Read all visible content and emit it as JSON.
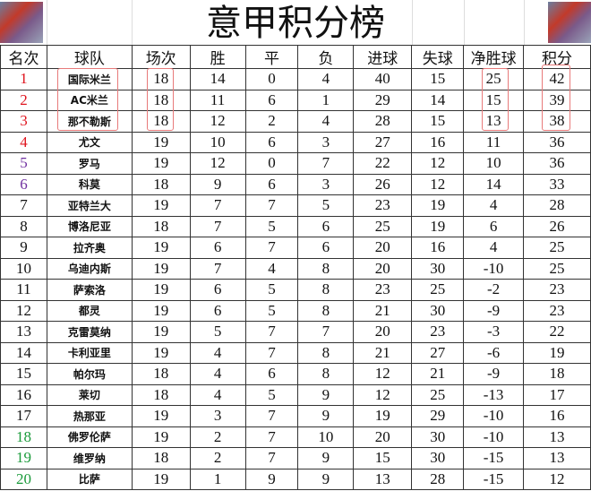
{
  "title": "意甲积分榜",
  "colors": {
    "top": "#e0141e",
    "europa": "#7030a0",
    "relegation": "#1a9a3a",
    "highlight": "#e87a7a"
  },
  "headers": [
    "名次",
    "球队",
    "场次",
    "胜",
    "平",
    "负",
    "进球",
    "失球",
    "净胜球",
    "积分"
  ],
  "rows": [
    [
      "1",
      "国际米兰",
      "18",
      "14",
      "0",
      "4",
      "40",
      "15",
      "25",
      "42"
    ],
    [
      "2",
      "AC米兰",
      "18",
      "11",
      "6",
      "1",
      "29",
      "14",
      "15",
      "39"
    ],
    [
      "3",
      "那不勒斯",
      "18",
      "12",
      "2",
      "4",
      "28",
      "15",
      "13",
      "38"
    ],
    [
      "4",
      "尤文",
      "19",
      "10",
      "6",
      "3",
      "27",
      "16",
      "11",
      "36"
    ],
    [
      "5",
      "罗马",
      "19",
      "12",
      "0",
      "7",
      "22",
      "12",
      "10",
      "36"
    ],
    [
      "6",
      "科莫",
      "18",
      "9",
      "6",
      "3",
      "26",
      "12",
      "14",
      "33"
    ],
    [
      "7",
      "亚特兰大",
      "19",
      "7",
      "7",
      "5",
      "23",
      "19",
      "4",
      "28"
    ],
    [
      "8",
      "博洛尼亚",
      "18",
      "7",
      "5",
      "6",
      "25",
      "19",
      "6",
      "26"
    ],
    [
      "9",
      "拉齐奥",
      "19",
      "6",
      "7",
      "6",
      "20",
      "16",
      "4",
      "25"
    ],
    [
      "10",
      "乌迪内斯",
      "19",
      "7",
      "4",
      "8",
      "20",
      "30",
      "-10",
      "25"
    ],
    [
      "11",
      "萨索洛",
      "19",
      "6",
      "5",
      "8",
      "23",
      "25",
      "-2",
      "23"
    ],
    [
      "12",
      "都灵",
      "19",
      "6",
      "5",
      "8",
      "21",
      "30",
      "-9",
      "23"
    ],
    [
      "13",
      "克雷莫纳",
      "19",
      "5",
      "7",
      "7",
      "20",
      "23",
      "-3",
      "22"
    ],
    [
      "14",
      "卡利亚里",
      "19",
      "4",
      "7",
      "8",
      "21",
      "27",
      "-6",
      "19"
    ],
    [
      "15",
      "帕尔玛",
      "18",
      "4",
      "6",
      "8",
      "12",
      "21",
      "-9",
      "18"
    ],
    [
      "16",
      "莱切",
      "18",
      "4",
      "5",
      "9",
      "12",
      "25",
      "-13",
      "17"
    ],
    [
      "17",
      "热那亚",
      "19",
      "3",
      "7",
      "9",
      "19",
      "29",
      "-10",
      "16"
    ],
    [
      "18",
      "佛罗伦萨",
      "19",
      "2",
      "7",
      "10",
      "20",
      "30",
      "-10",
      "13"
    ],
    [
      "19",
      "维罗纳",
      "18",
      "2",
      "7",
      "9",
      "15",
      "30",
      "-15",
      "13"
    ],
    [
      "20",
      "比萨",
      "19",
      "1",
      "9",
      "9",
      "13",
      "28",
      "-15",
      "12"
    ]
  ]
}
